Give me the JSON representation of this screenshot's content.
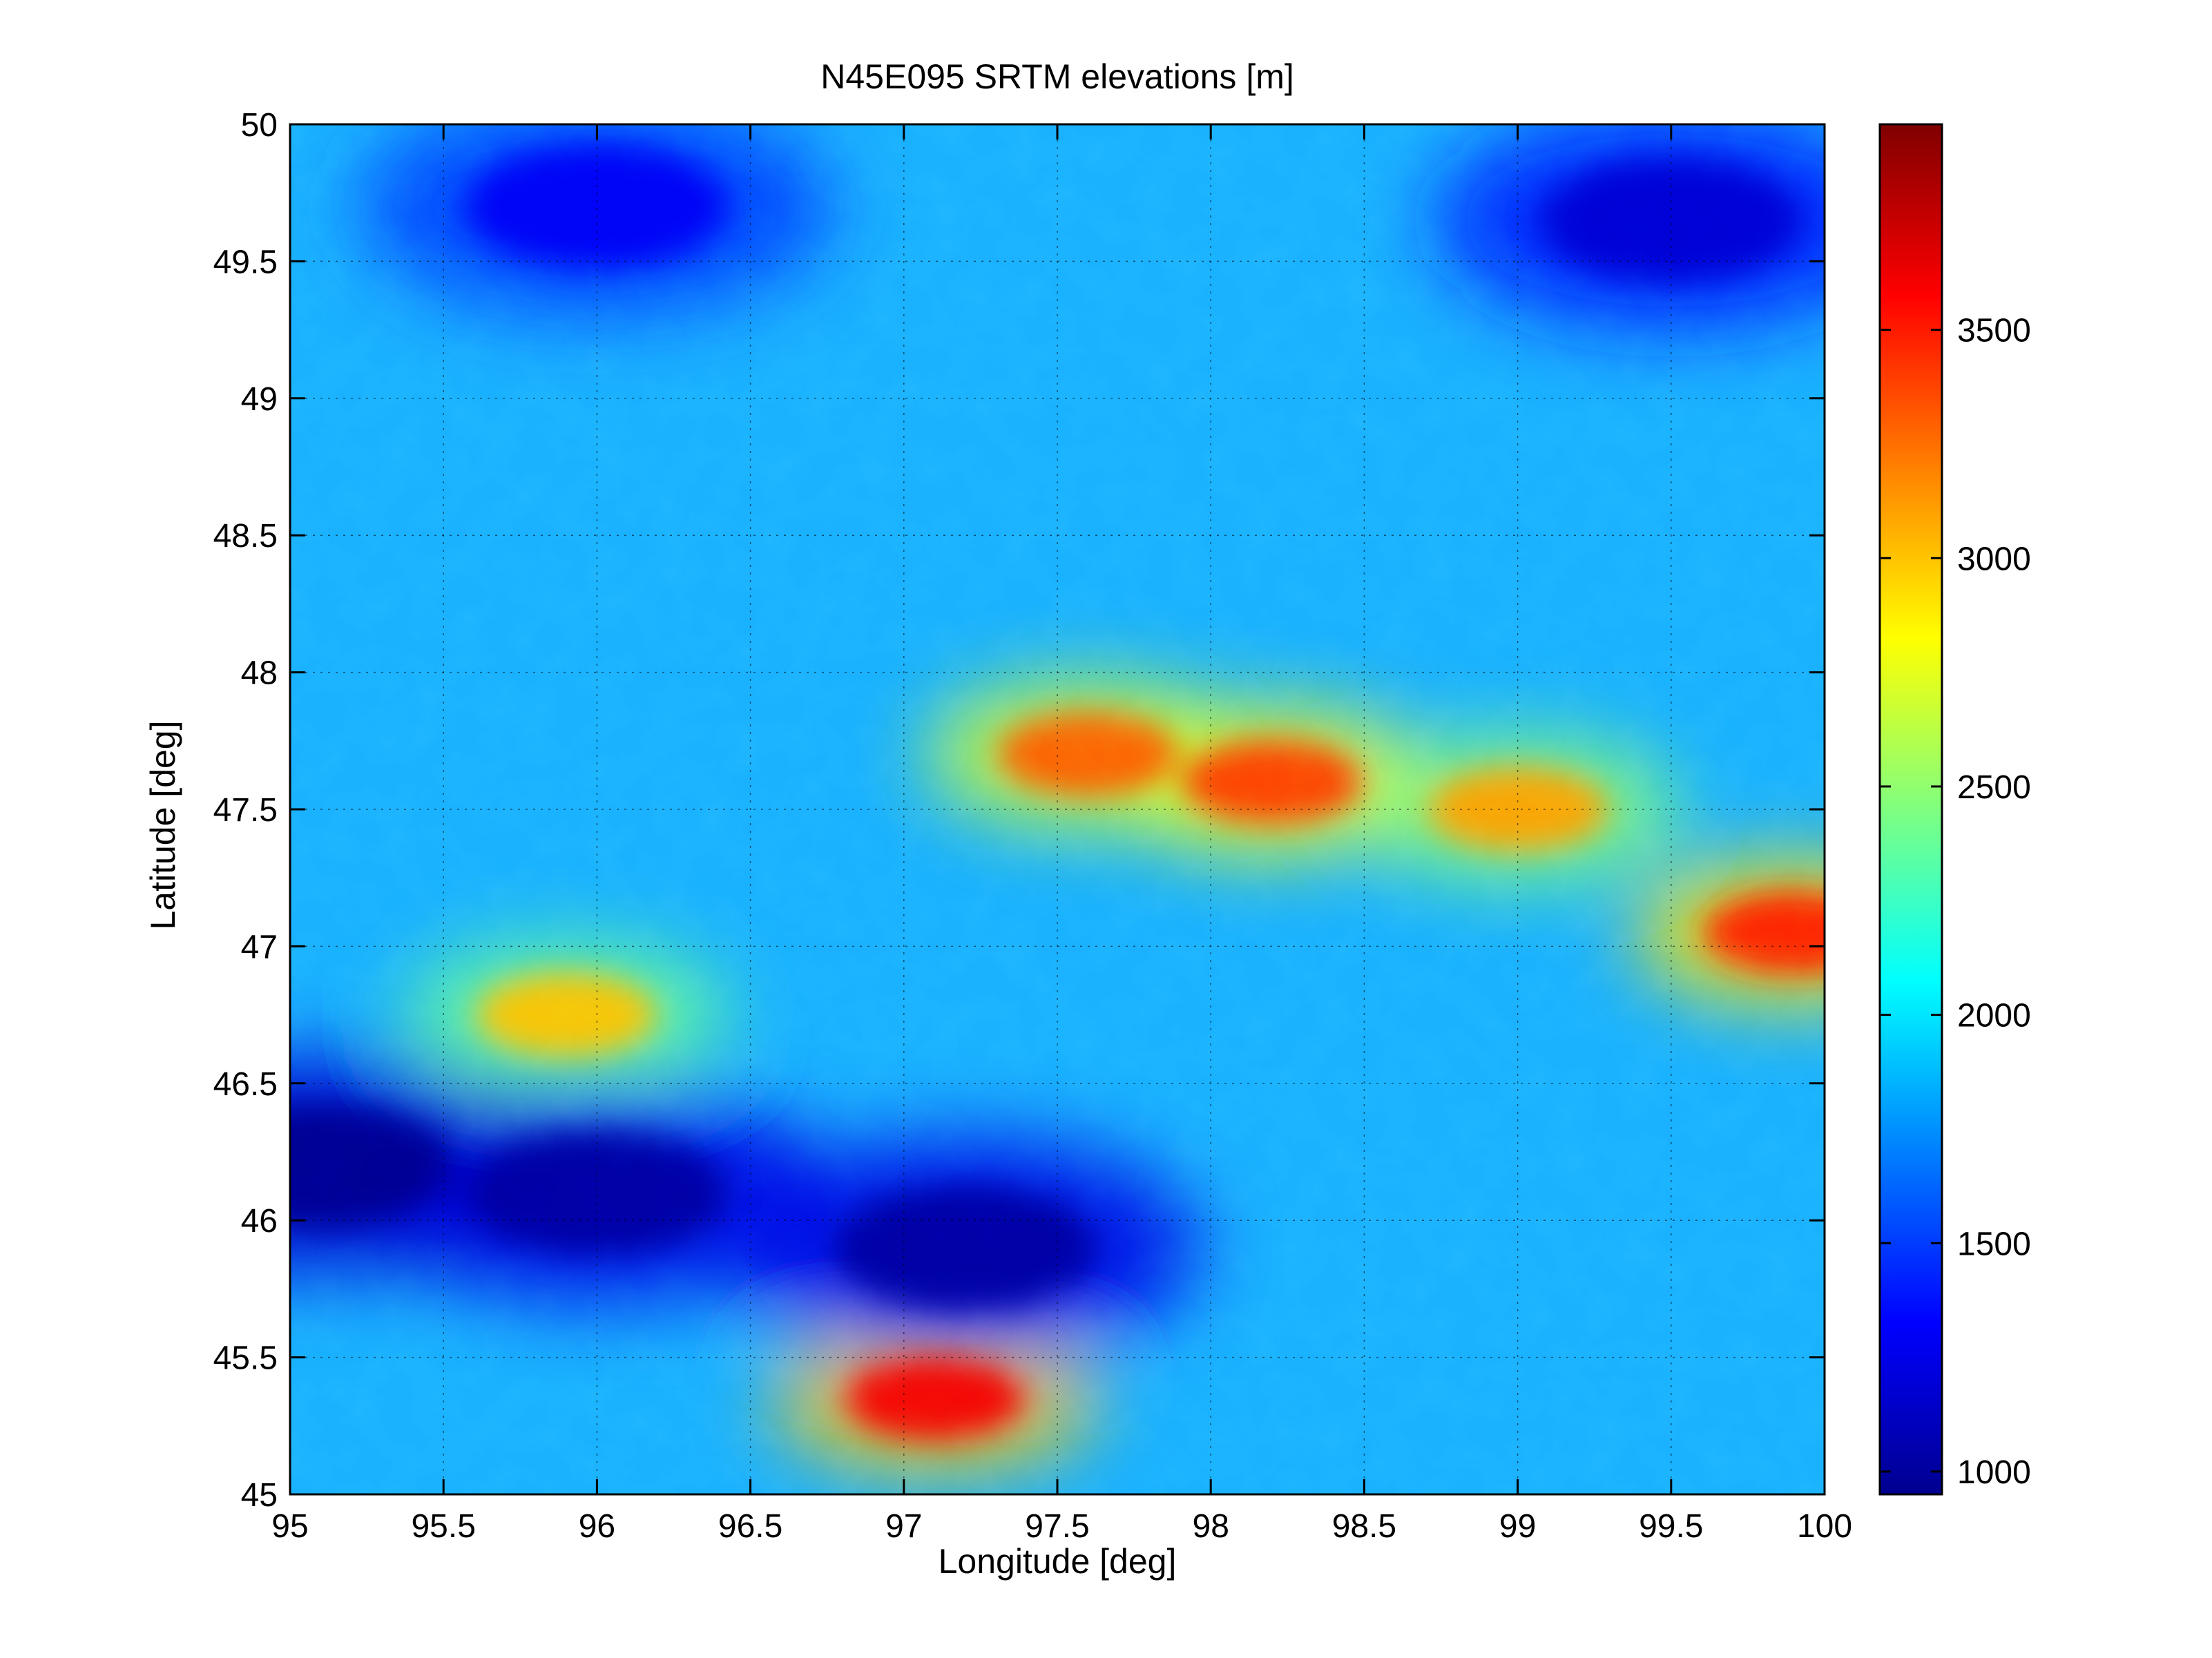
{
  "chart_data": {
    "type": "heatmap",
    "title": "N45E095 SRTM elevations [m]",
    "xlabel": "Longitude [deg]",
    "ylabel": "Latitude [deg]",
    "xlim": [
      95,
      100
    ],
    "ylim": [
      45,
      50
    ],
    "x_ticks": [
      "95",
      "95.5",
      "96",
      "96.5",
      "97",
      "97.5",
      "98",
      "98.5",
      "99",
      "99.5",
      "100"
    ],
    "y_ticks": [
      "45",
      "45.5",
      "46",
      "46.5",
      "47",
      "47.5",
      "48",
      "48.5",
      "49",
      "49.5",
      "50"
    ],
    "grid": true,
    "colormap": "jet",
    "colorbar": {
      "range": [
        950,
        3950
      ],
      "ticks": [
        "1000",
        "1500",
        "2000",
        "2500",
        "3000",
        "3500"
      ],
      "tick_values": [
        1000,
        1500,
        2000,
        2500,
        3000,
        3500
      ]
    },
    "features": [
      {
        "lon": 98.2,
        "lat": 47.6,
        "elev": 3400
      },
      {
        "lon": 97.6,
        "lat": 47.7,
        "elev": 3300
      },
      {
        "lon": 99.0,
        "lat": 47.5,
        "elev": 3100
      },
      {
        "lon": 99.9,
        "lat": 47.05,
        "elev": 3500
      },
      {
        "lon": 97.1,
        "lat": 45.35,
        "elev": 3600
      },
      {
        "lon": 95.9,
        "lat": 46.75,
        "elev": 3000
      },
      {
        "lon": 96.0,
        "lat": 46.1,
        "elev": 1050
      },
      {
        "lon": 95.1,
        "lat": 46.2,
        "elev": 1000
      },
      {
        "lon": 97.2,
        "lat": 45.9,
        "elev": 1050
      },
      {
        "lon": 99.5,
        "lat": 49.65,
        "elev": 1200
      },
      {
        "lon": 96.0,
        "lat": 49.7,
        "elev": 1300
      }
    ]
  }
}
